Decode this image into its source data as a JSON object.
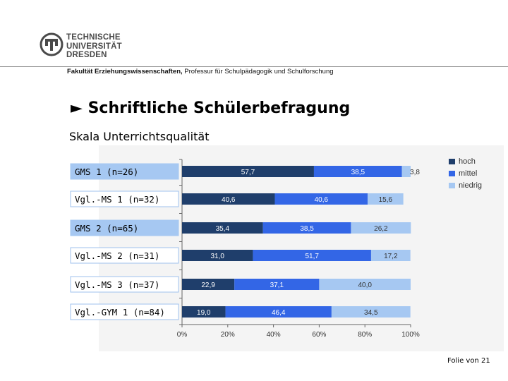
{
  "header": {
    "university_lines": [
      "TECHNISCHE",
      "UNIVERSITÄT",
      "DRESDEN"
    ],
    "faculty_bold": "Fakultät Erziehungswissenschaften,",
    "faculty_rest": "Professur für Schulpädagogik und Schulforschung"
  },
  "slide": {
    "title": "► Schriftliche Schülerbefragung",
    "subtitle": "Skala Unterrichtsqualität",
    "footer": "Folie  von  21"
  },
  "colors": {
    "hoch": "#1f3e6b",
    "mittel": "#3366e6",
    "niedrig": "#a6c8f2",
    "highlight_box": "#a6c8f2"
  },
  "chart_data": {
    "type": "bar",
    "orientation": "horizontal",
    "stacked": true,
    "categories": [
      "GMS 1 (n=26)",
      "Vgl.-MS 1 (n=32)",
      "GMS 2 (n=65)",
      "Vgl.-MS 2 (n=31)",
      "Vgl.-MS 3 (n=37)",
      "Vgl.-GYM 1 (n=84)"
    ],
    "highlighted": [
      true,
      false,
      true,
      false,
      false,
      false
    ],
    "series": [
      {
        "name": "hoch",
        "values": [
          57.7,
          40.6,
          35.4,
          31.0,
          22.9,
          19.0
        ],
        "labels": [
          "57,7",
          "40,6",
          "35,4",
          "31,0",
          "22,9",
          "19,0"
        ]
      },
      {
        "name": "mittel",
        "values": [
          38.5,
          40.6,
          38.5,
          51.7,
          37.1,
          46.4
        ],
        "labels": [
          "38,5",
          "40,6",
          "38,5",
          "51,7",
          "37,1",
          "46,4"
        ]
      },
      {
        "name": "niedrig",
        "values": [
          3.8,
          15.6,
          26.2,
          17.2,
          40.0,
          34.5
        ],
        "labels": [
          "3,8",
          "15,6",
          "26,2",
          "17,2",
          "40,0",
          "34,5"
        ]
      }
    ],
    "xlim": [
      0,
      100
    ],
    "xticks": [
      "0%",
      "20%",
      "40%",
      "60%",
      "80%",
      "100%"
    ],
    "legend_position": "top-right"
  }
}
